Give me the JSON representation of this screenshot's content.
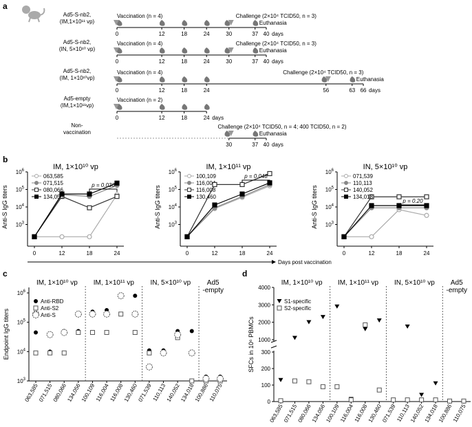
{
  "panel_a": {
    "label": "a",
    "unit": "days",
    "rows": [
      {
        "group": "Ad5-S-nb2,",
        "dose": "(IM,1×10¹¹ vp)",
        "vaccination": "Vaccination (n = 4)",
        "vacc_days": [
          0,
          12,
          18,
          24
        ],
        "challenge": "Challenge (2×10⁴ TCID50, n = 3)",
        "challenge_day": 30,
        "euthanasia": "Euthanasia",
        "euth_day": 37,
        "ticks": [
          0,
          12,
          18,
          24,
          30,
          37,
          40
        ]
      },
      {
        "group": "Ad5-S-nb2,",
        "dose": "(IN, 5×10¹⁰ vp)",
        "vaccination": "Vaccination (n = 4)",
        "vacc_days": [
          0,
          12,
          18,
          24
        ],
        "challenge": "Challenge (2×10⁴ TCID50, n = 3)",
        "challenge_day": 30,
        "euthanasia": "Euthanasia",
        "euth_day": 37,
        "ticks": [
          0,
          12,
          18,
          24,
          30,
          37,
          40
        ]
      },
      {
        "group": "Ad5-S-nb2,",
        "dose": "(IM, 1×10¹⁰vp)",
        "vaccination": "Vaccination (n = 4)",
        "vacc_days": [
          0,
          12,
          18,
          24
        ],
        "challenge": "Challenge (2×10⁴ TCID50, n = 3)",
        "challenge_day": 56,
        "euthanasia": "Euthanasia",
        "euth_day": 63,
        "ticks": [
          0,
          12,
          18,
          24,
          56,
          63,
          66
        ]
      },
      {
        "group": "Ad5-empty",
        "dose": "(IM,1×10¹¹vp)",
        "vaccination": "Vaccination (n = 2)",
        "vacc_days": [
          0,
          12,
          18,
          24
        ],
        "challenge": "",
        "challenge_day": null,
        "euthanasia": "",
        "euth_day": null,
        "ticks": [
          0,
          12,
          18,
          24
        ]
      },
      {
        "group": "Non-",
        "dose": "vaccination",
        "vaccination": "",
        "vacc_days": [],
        "challenge": "Challenge (2×10⁴ TCID50, n = 4; 400 TCID50, n = 2)",
        "challenge_day": 30,
        "euthanasia": "Euthanasia",
        "euth_day": 37,
        "ticks": [
          30,
          37,
          40
        ]
      }
    ]
  },
  "panel_b": {
    "label": "b",
    "xlabel": "Days post vaccination",
    "ylabel": "Anti-S IgG titers",
    "chart_data": [
      {
        "type": "line",
        "title": "IM, 1×10¹⁰ vp",
        "x": [
          0,
          12,
          18,
          24
        ],
        "ylim": [
          100,
          1000000
        ],
        "yscale": "log",
        "series": [
          {
            "name": "063,585",
            "style": "open-gray",
            "values": [
              200,
              200,
              200,
              50000
            ]
          },
          {
            "name": "071,515",
            "style": "filled-gray",
            "values": [
              200,
              50000,
              40000,
              170000
            ]
          },
          {
            "name": "080,066",
            "style": "open-dark",
            "values": [
              200,
              40000,
              9000,
              40000
            ]
          },
          {
            "name": "134,056",
            "style": "filled-black",
            "values": [
              200,
              55000,
              55000,
              230000
            ]
          }
        ],
        "annotation": {
          "text": "p = 0.036",
          "from": 18,
          "to": 24
        }
      },
      {
        "type": "line",
        "title": "IM, 1×10¹¹ vp",
        "x": [
          0,
          12,
          18,
          24
        ],
        "ylim": [
          100,
          1000000
        ],
        "yscale": "log",
        "series": [
          {
            "name": "100,109",
            "style": "open-gray",
            "values": [
              200,
              8000,
              35000,
              160000
            ]
          },
          {
            "name": "116,004",
            "style": "filled-gray",
            "values": [
              200,
              9000,
              40000,
              190000
            ]
          },
          {
            "name": "116,008",
            "style": "open-dark",
            "values": [
              200,
              190000,
              190000,
              800000
            ]
          },
          {
            "name": "130,460",
            "style": "filled-black",
            "values": [
              200,
              13000,
              55000,
              240000
            ]
          }
        ],
        "annotation": {
          "text": "p = 0.048",
          "from": 18,
          "to": 24
        }
      },
      {
        "type": "line",
        "title": "IN, 5×10¹⁰ vp",
        "x": [
          0,
          12,
          18,
          24
        ],
        "ylim": [
          100,
          1000000
        ],
        "yscale": "log",
        "series": [
          {
            "name": "071,539",
            "style": "open-gray",
            "values": [
              200,
              200,
              7000,
              3300
            ]
          },
          {
            "name": "110,113",
            "style": "filled-gray",
            "values": [
              200,
              9000,
              9000,
              9000
            ]
          },
          {
            "name": "140,052",
            "style": "open-dark",
            "values": [
              200,
              38000,
              38000,
              38000
            ]
          },
          {
            "name": "134,018",
            "style": "filled-black",
            "values": [
              200,
              12000,
              12000,
              12000
            ]
          }
        ],
        "annotation": {
          "text": "p = 0.20",
          "from": 18,
          "to": 24
        }
      }
    ]
  },
  "panel_c": {
    "label": "c",
    "chart_data": {
      "type": "scatter",
      "ylabel": "Endpoint IgG titers",
      "ylim": [
        1000,
        1000000
      ],
      "yscale": "log",
      "categories": [
        "063,585",
        "071,515",
        "080,066",
        "134,056",
        "100,109",
        "116,004",
        "116,008",
        "130,460",
        "071,539",
        "110,113",
        "140,052",
        "134,018",
        "100,886",
        "110,075"
      ],
      "groups": [
        {
          "label": "IM, 1×10¹⁰ vp",
          "from": 0,
          "to": 3
        },
        {
          "label": "IM, 1×10¹¹ vp",
          "from": 4,
          "to": 7
        },
        {
          "label": "IN, 5×10¹⁰ vp",
          "from": 8,
          "to": 11
        },
        {
          "label": "Ad5\n-empty",
          "from": 12,
          "to": 13
        }
      ],
      "series": [
        {
          "name": "Anti-RBD",
          "marker": "filled-circle",
          "values": [
            45000,
            10000,
            50000,
            50000,
            230000,
            260000,
            800000,
            800000,
            11000,
            11000,
            50000,
            50000,
            1400,
            1400
          ]
        },
        {
          "name": "Anti-S2",
          "marker": "open-square",
          "values": [
            9000,
            9000,
            9000,
            45000,
            45000,
            45000,
            190000,
            45000,
            9000,
            9000,
            30000,
            1000,
            1000,
            1000
          ]
        },
        {
          "name": "Anti-S",
          "marker": "open-star",
          "values": [
            190000,
            38000,
            45000,
            190000,
            190000,
            190000,
            800000,
            190000,
            3000,
            9000,
            38000,
            9000,
            1200,
            1200
          ]
        }
      ]
    }
  },
  "panel_d": {
    "label": "d",
    "chart_data": {
      "type": "scatter",
      "ylabel": "SFCs in 10⁶ PBMCs",
      "ylim": [
        0,
        4000
      ],
      "yscale": "broken",
      "yticks": [
        0,
        100,
        200,
        300,
        1000,
        2000,
        3000,
        4000
      ],
      "categories": [
        "063,585",
        "071,515",
        "080,066",
        "134,056",
        "100,109",
        "116,004",
        "116,008",
        "130,460",
        "071,539",
        "110,113",
        "140,052",
        "134,018",
        "100,886",
        "110,075"
      ],
      "groups": [
        {
          "label": "IM, 1×10¹⁰ vp",
          "from": 0,
          "to": 3
        },
        {
          "label": "IM, 1×10¹¹ vp",
          "from": 4,
          "to": 7
        },
        {
          "label": "IN, 5×10¹⁰ vp",
          "from": 8,
          "to": 11
        },
        {
          "label": "Ad5\n-empty",
          "from": 12,
          "to": 13
        }
      ],
      "series": [
        {
          "name": "S1-specific",
          "marker": "filled-down-triangle",
          "values": [
            130,
            1100,
            2000,
            2300,
            2900,
            15,
            1600,
            2100,
            10,
            1750,
            40,
            110,
            3,
            3
          ]
        },
        {
          "name": "S2-specific",
          "marker": "open-square",
          "values": [
            5,
            125,
            120,
            90,
            90,
            10,
            1850,
            70,
            10,
            10,
            10,
            10,
            3,
            3
          ]
        }
      ]
    }
  },
  "colors": {
    "open_gray": "#aaaaaa",
    "filled_gray": "#888888",
    "dark": "#333333",
    "black": "#000000",
    "challenge_arrow": "#999999"
  }
}
